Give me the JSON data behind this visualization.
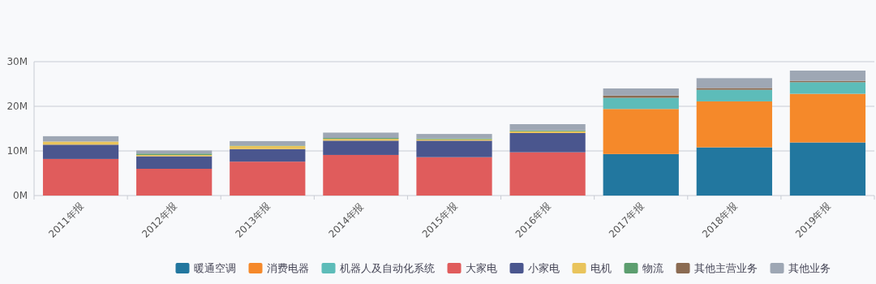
{
  "chart_data": {
    "type": "bar",
    "stacked": true,
    "categories": [
      "2011年报",
      "2012年报",
      "2013年报",
      "2014年报",
      "2015年报",
      "2016年报",
      "2017年报",
      "2018年报",
      "2019年报"
    ],
    "ylim": [
      0,
      30
    ],
    "yticks": [
      {
        "value": 0,
        "label": "0M"
      },
      {
        "value": 10,
        "label": "10M"
      },
      {
        "value": 20,
        "label": "20M"
      },
      {
        "value": 30,
        "label": "30M"
      }
    ],
    "grid": "y",
    "legend": "bottom",
    "series": [
      {
        "name": "暖通空调",
        "color": "#22779f",
        "values": [
          null,
          null,
          null,
          null,
          null,
          null,
          9.3,
          10.8,
          11.9
        ]
      },
      {
        "name": "消费电器",
        "color": "#f5892a",
        "values": [
          null,
          null,
          null,
          null,
          null,
          null,
          10.1,
          10.3,
          10.9
        ]
      },
      {
        "name": "机器人及自动化系统",
        "color": "#5dbcb9",
        "values": [
          null,
          null,
          null,
          null,
          null,
          null,
          2.5,
          2.6,
          2.6
        ]
      },
      {
        "name": "大家电",
        "color": "#e05c5c",
        "values": [
          8.2,
          6.0,
          7.6,
          9.1,
          8.6,
          9.7,
          null,
          null,
          null
        ]
      },
      {
        "name": "小家电",
        "color": "#4a568e",
        "values": [
          3.2,
          2.8,
          2.8,
          3.2,
          3.7,
          4.3,
          null,
          null,
          null
        ]
      },
      {
        "name": "电机",
        "color": "#e9c45c",
        "values": [
          0.7,
          0.3,
          0.7,
          0.4,
          0.3,
          0.4,
          null,
          null,
          null
        ]
      },
      {
        "name": "物流",
        "color": "#5c9e6f",
        "values": [
          null,
          0.3,
          0.1,
          0.2,
          0.2,
          0.2,
          null,
          null,
          null
        ]
      },
      {
        "name": "其他主营业务",
        "color": "#8b6b52",
        "values": [
          null,
          null,
          null,
          null,
          null,
          null,
          0.5,
          0.4,
          0.3
        ]
      },
      {
        "name": "其他业务",
        "color": "#9ea7b4",
        "values": [
          1.2,
          0.7,
          1.0,
          1.2,
          1.0,
          1.4,
          1.6,
          2.2,
          2.3
        ]
      }
    ]
  }
}
